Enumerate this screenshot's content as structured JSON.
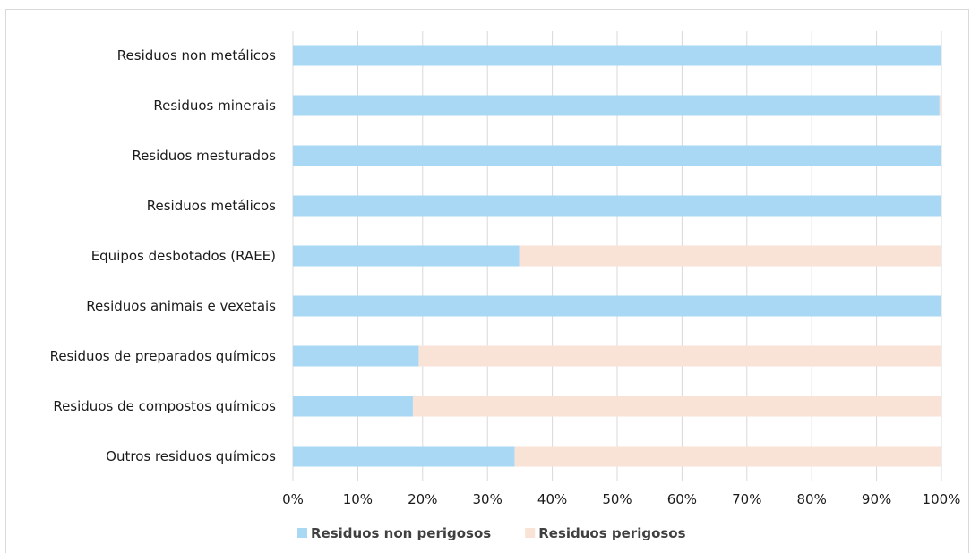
{
  "chart_data": {
    "type": "bar",
    "orientation": "horizontal",
    "stacked": "percent",
    "title": "",
    "xlabel": "",
    "ylabel": "",
    "categories": [
      "Residuos non metálicos",
      "Residuos minerais",
      "Residuos mesturados",
      "Residuos metálicos",
      "Equipos desbotados (RAEE)",
      "Residuos animais e vexetais",
      "Residuos de preparados químicos",
      "Residuos de compostos químicos",
      "Outros residuos químicos"
    ],
    "series": [
      {
        "name": "Residuos non perigosos",
        "color": "#a9d8f5",
        "values": [
          100,
          99.7,
          100,
          100,
          34.9,
          100,
          19.4,
          18.5,
          34.2
        ]
      },
      {
        "name": "Residuos perigosos",
        "color": "#f8e3d6",
        "values": [
          0,
          0.3,
          0,
          0,
          65.1,
          0,
          80.6,
          81.5,
          65.8
        ]
      }
    ],
    "xlim": [
      0,
      100
    ],
    "xticks": [
      "0%",
      "10%",
      "20%",
      "30%",
      "40%",
      "50%",
      "60%",
      "70%",
      "80%",
      "90%",
      "100%"
    ],
    "grid": true,
    "legend_position": "bottom"
  }
}
